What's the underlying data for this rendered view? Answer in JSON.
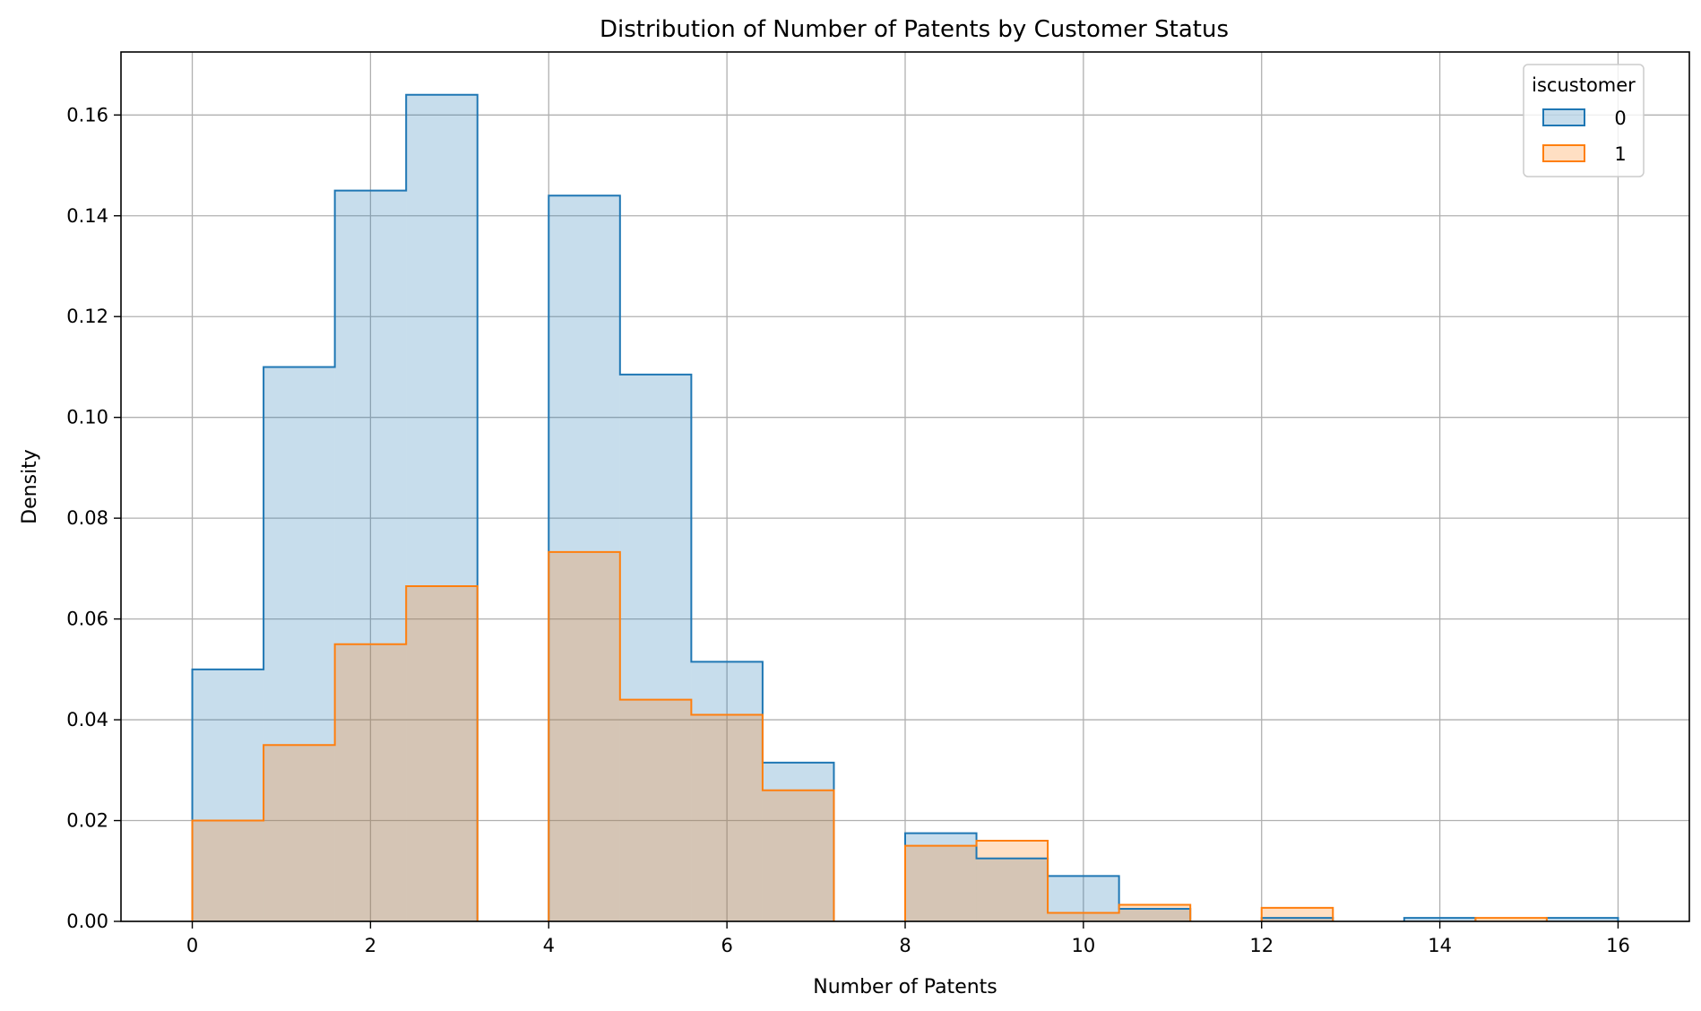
{
  "chart_data": {
    "type": "histogram",
    "title": "Distribution of Number of Patents by Customer Status",
    "xlabel": "Number of Patents",
    "ylabel": "Density",
    "xlim": [
      -0.8,
      16.8
    ],
    "ylim": [
      0,
      0.1725
    ],
    "xticks": [
      0,
      2,
      4,
      6,
      8,
      10,
      12,
      14,
      16
    ],
    "yticks": [
      0.0,
      0.02,
      0.04,
      0.06,
      0.08,
      0.1,
      0.12,
      0.14,
      0.16
    ],
    "ytick_labels": [
      "0.00",
      "0.02",
      "0.04",
      "0.06",
      "0.08",
      "0.10",
      "0.12",
      "0.14",
      "0.16"
    ],
    "grid": true,
    "legend": {
      "title": "iscustomer",
      "placement": "top-right"
    },
    "bin_edges": [
      0,
      0.8,
      1.6,
      2.4,
      3.2,
      4.0,
      4.8,
      5.6,
      6.4,
      7.2,
      8.0,
      8.8,
      9.6,
      10.4,
      11.2,
      12.0,
      12.8,
      13.6,
      14.4,
      15.2,
      16.0
    ],
    "series": [
      {
        "name": "0",
        "line_color": "#1f77b4",
        "fill_color": "#1f77b4",
        "values": [
          0.05,
          0.11,
          0.145,
          0.164,
          0.0,
          0.144,
          0.1085,
          0.0515,
          0.0315,
          0.0,
          0.0175,
          0.0125,
          0.009,
          0.0025,
          0.0,
          0.0007,
          0.0,
          0.0007,
          0.0,
          0.0007
        ]
      },
      {
        "name": "1",
        "line_color": "#ff7f0e",
        "fill_color": "#ff7f0e",
        "values": [
          0.02,
          0.035,
          0.055,
          0.0665,
          0.0,
          0.0733,
          0.044,
          0.041,
          0.026,
          0.0,
          0.015,
          0.016,
          0.0017,
          0.0033,
          0.0,
          0.0027,
          0.0,
          0.0,
          0.0007,
          0.0
        ]
      }
    ]
  }
}
